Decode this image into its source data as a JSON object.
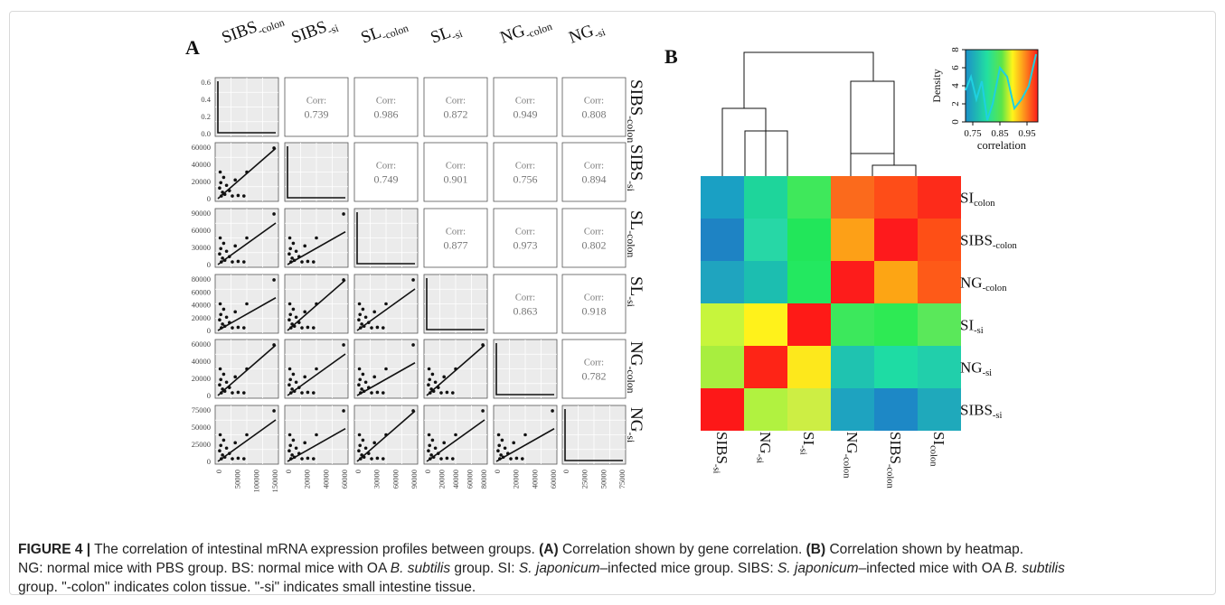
{
  "panel_a": {
    "label": "A",
    "groups": [
      {
        "name": "SIBS",
        "sub": "-colon"
      },
      {
        "name": "SIBS",
        "sub": "-si"
      },
      {
        "name": "SL",
        "sub": "-colon"
      },
      {
        "name": "SL",
        "sub": "-si"
      },
      {
        "name": "NG",
        "sub": "-colon"
      },
      {
        "name": "NG",
        "sub": "-si"
      }
    ],
    "corr_word": "Corr:",
    "corr_values": [
      [
        null,
        "0.739",
        "0.986",
        "0.872",
        "0.949",
        "0.808"
      ],
      [
        null,
        null,
        "0.749",
        "0.901",
        "0.756",
        "0.894"
      ],
      [
        null,
        null,
        null,
        "0.877",
        "0.973",
        "0.802"
      ],
      [
        null,
        null,
        null,
        null,
        "0.863",
        "0.918"
      ],
      [
        null,
        null,
        null,
        null,
        null,
        "0.782"
      ]
    ],
    "y_ticks": [
      [
        "0.0",
        "0.2",
        "0.4",
        "0.6"
      ],
      [
        "0",
        "20000",
        "40000",
        "60000"
      ],
      [
        "0",
        "30000",
        "60000",
        "90000"
      ],
      [
        "0",
        "20000",
        "40000",
        "60000",
        "80000"
      ],
      [
        "0",
        "20000",
        "40000",
        "60000"
      ],
      [
        "0",
        "25000",
        "50000",
        "75000"
      ]
    ],
    "x_ticks": [
      [
        "0",
        "50000",
        "100000",
        "150000"
      ],
      [
        "0",
        "20000",
        "40000",
        "60000"
      ],
      [
        "0",
        "30000",
        "60000",
        "90000"
      ],
      [
        "0",
        "20000",
        "40000",
        "60000",
        "80000"
      ],
      [
        "0",
        "20000",
        "40000",
        "60000"
      ],
      [
        "0",
        "25000",
        "50000",
        "75000"
      ]
    ]
  },
  "panel_b": {
    "label": "B",
    "legend": {
      "ylabel": "Density",
      "xlabel": "correlation",
      "y_ticks": [
        "0",
        "2",
        "4",
        "6",
        "8"
      ],
      "x_ticks": [
        "0.75",
        "0.85",
        "0.95"
      ]
    },
    "row_labels": [
      {
        "name": "SI",
        "sub": "colon"
      },
      {
        "name": "SIBS",
        "sub": "-colon"
      },
      {
        "name": "NG",
        "sub": "-colon"
      },
      {
        "name": "SI",
        "sub": "-si"
      },
      {
        "name": "NG",
        "sub": "-si"
      },
      {
        "name": "SIBS",
        "sub": "-si"
      }
    ],
    "col_labels": [
      {
        "name": "SIBS",
        "sub": "-si"
      },
      {
        "name": "NG",
        "sub": "-si"
      },
      {
        "name": "SI",
        "sub": "-si"
      },
      {
        "name": "NG",
        "sub": "-colon"
      },
      {
        "name": "SIBS",
        "sub": "-colon"
      },
      {
        "name": "SI",
        "sub": "colon"
      }
    ],
    "colors": [
      [
        "#1aa0c4",
        "#1ed59b",
        "#3fe85b",
        "#fb6a1c",
        "#fe4d18",
        "#fd2b1a"
      ],
      [
        "#1e83c4",
        "#27d7a6",
        "#22e65a",
        "#fda017",
        "#fe1a1c",
        "#fe4f16"
      ],
      [
        "#1fa4bf",
        "#1cbeb0",
        "#23e860",
        "#fd1c1b",
        "#fda514",
        "#fe5a18"
      ],
      [
        "#c7f53c",
        "#fff21b",
        "#fe1a17",
        "#3ce85c",
        "#2eea54",
        "#5ae85a"
      ],
      [
        "#a8ee3f",
        "#fe2416",
        "#fde81c",
        "#1fc3b0",
        "#1edca4",
        "#21cfab"
      ],
      [
        "#fd1818",
        "#b1f240",
        "#cdee44",
        "#1ea3c0",
        "#1d88c6",
        "#1fa9bb"
      ]
    ]
  },
  "caption": {
    "figure_label": "FIGURE 4 |",
    "line1_text": " The correlation of intestinal mRNA expression profiles between groups. ",
    "a_label": "(A)",
    "a_text": " Correlation shown by gene correlation. ",
    "b_label": "(B)",
    "b_text": " Correlation shown by heatmap.",
    "line2_a": "NG: normal mice with PBS group. BS: normal mice with OA ",
    "line2_b": "B. subtilis",
    "line2_c": " group. SI: ",
    "line2_d": "S. japonicum",
    "line2_e": "–infected mice group. SIBS: ",
    "line2_f": "S. japonicum",
    "line2_g": "–infected mice with OA ",
    "line2_h": "B. subtilis",
    "line3": "group. \"-colon\" indicates colon tissue. \"-si\" indicates small intestine tissue."
  }
}
